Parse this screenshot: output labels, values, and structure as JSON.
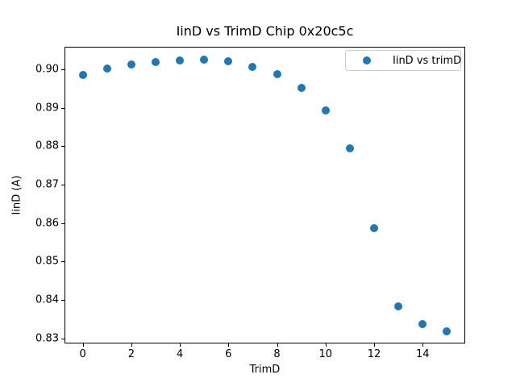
{
  "figure": {
    "title": "IinD vs TrimD Chip 0x20c5c",
    "xlabel": "TrimD",
    "ylabel": "IinD (A)",
    "legend": {
      "label": "IinD vs trimD",
      "position": "upper right"
    },
    "colors": {
      "marker": "#1f77b4",
      "spine": "#000000",
      "legend_border": "#cccccc",
      "background": "#ffffff"
    }
  },
  "chart_data": {
    "type": "scatter",
    "title": "IinD vs TrimD Chip 0x20c5c",
    "xlabel": "TrimD",
    "ylabel": "IinD (A)",
    "series": [
      {
        "name": "IinD vs trimD",
        "marker": "circle",
        "color": "#1f77b4",
        "x": [
          0,
          1,
          2,
          3,
          4,
          5,
          6,
          7,
          8,
          9,
          10,
          11,
          12,
          13,
          14,
          15
        ],
        "y": [
          0.8985,
          0.9002,
          0.9012,
          0.9019,
          0.9023,
          0.9025,
          0.9021,
          0.9006,
          0.8988,
          0.8952,
          0.8893,
          0.8795,
          0.8588,
          0.8383,
          0.8338,
          0.8319
        ]
      }
    ],
    "xlim": [
      -0.75,
      15.75
    ],
    "ylim": [
      0.8287,
      0.9059
    ],
    "xticks": {
      "values": [
        0,
        2,
        4,
        6,
        8,
        10,
        12,
        14
      ],
      "labels": [
        "0",
        "2",
        "4",
        "6",
        "8",
        "10",
        "12",
        "14"
      ]
    },
    "yticks": {
      "values": [
        0.83,
        0.84,
        0.85,
        0.86,
        0.87,
        0.88,
        0.89,
        0.9
      ],
      "labels": [
        "0.83",
        "0.84",
        "0.85",
        "0.86",
        "0.87",
        "0.88",
        "0.89",
        "0.90"
      ]
    },
    "grid": false,
    "legend_position": "upper right"
  }
}
